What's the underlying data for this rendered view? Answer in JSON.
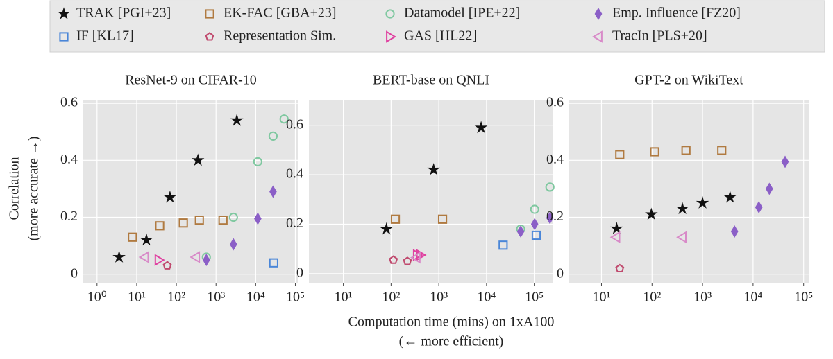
{
  "chart_data": [
    {
      "type": "scatter",
      "title": "ResNet-9 on CIFAR-10",
      "xscale": "log",
      "grid": true,
      "xlim": [
        0.45,
        120000
      ],
      "ylim": [
        -0.03,
        0.61
      ],
      "xticks": [
        {
          "value": 1,
          "label": "10⁰"
        },
        {
          "value": 10,
          "label": "10¹"
        },
        {
          "value": 100,
          "label": "10²"
        },
        {
          "value": 1000,
          "label": "10³"
        },
        {
          "value": 10000,
          "label": "10⁴"
        },
        {
          "value": 100000,
          "label": "10⁵"
        }
      ],
      "yticks": [
        0,
        0.2,
        0.4,
        0.6
      ],
      "series": [
        {
          "name": "TRAK [PGI+23]",
          "color": "#111111",
          "marker": "star",
          "x": [
            3.6,
            17.6,
            69,
            350,
            3350
          ],
          "values": [
            0.06,
            0.12,
            0.27,
            0.4,
            0.54
          ]
        },
        {
          "name": "EK-FAC [GBA+23]",
          "color": "#b07a40",
          "marker": "square",
          "x": [
            7.8,
            38,
            150,
            380,
            1500
          ],
          "values": [
            0.13,
            0.17,
            0.18,
            0.19,
            0.19
          ]
        },
        {
          "name": "Datamodel [IPE+22]",
          "color": "#7fc8a0",
          "marker": "circle",
          "x": [
            570,
            2750,
            11300,
            27500,
            52000
          ],
          "values": [
            0.06,
            0.2,
            0.395,
            0.485,
            0.545
          ]
        },
        {
          "name": "Emp. Influence [FZ20]",
          "color": "#8b5fc7",
          "marker": "diamond",
          "x": [
            570,
            2750,
            11300,
            27500
          ],
          "values": [
            0.05,
            0.105,
            0.195,
            0.29
          ]
        },
        {
          "name": "IF [KL17]",
          "color": "#4a86d8",
          "marker": "square",
          "x": [
            28500
          ],
          "values": [
            0.04
          ]
        },
        {
          "name": "Representation Sim.",
          "color": "#c04a6e",
          "marker": "pentagon",
          "x": [
            59
          ],
          "values": [
            0.03
          ]
        },
        {
          "name": "GAS [HL22]",
          "color": "#e040a0",
          "marker": "triright",
          "x": [
            36
          ],
          "values": [
            0.05
          ]
        },
        {
          "name": "TracIn [PLS+20]",
          "color": "#d88ac8",
          "marker": "trileft",
          "x": [
            16,
            310
          ],
          "values": [
            0.06,
            0.06
          ]
        }
      ]
    },
    {
      "type": "scatter",
      "title": "BERT-base on QNLI",
      "xscale": "log",
      "grid": true,
      "xlim": [
        1.9,
        250000
      ],
      "ylim": [
        -0.037,
        0.7
      ],
      "xticks": [
        {
          "value": 10,
          "label": "10¹"
        },
        {
          "value": 100,
          "label": "10²"
        },
        {
          "value": 1000,
          "label": "10³"
        },
        {
          "value": 10000,
          "label": "10⁴"
        },
        {
          "value": 100000,
          "label": "10⁵"
        }
      ],
      "yticks": [
        0,
        0.2,
        0.4,
        0.6
      ],
      "series": [
        {
          "name": "TRAK [PGI+23]",
          "color": "#111111",
          "marker": "star",
          "x": [
            80,
            780,
            7700
          ],
          "values": [
            0.18,
            0.42,
            0.59
          ]
        },
        {
          "name": "EK-FAC [GBA+23]",
          "color": "#b07a40",
          "marker": "square",
          "x": [
            123,
            1200
          ],
          "values": [
            0.22,
            0.22
          ]
        },
        {
          "name": "Datamodel [IPE+22]",
          "color": "#7fc8a0",
          "marker": "circle",
          "x": [
            52000,
            102000,
            213000
          ],
          "values": [
            0.18,
            0.26,
            0.35
          ]
        },
        {
          "name": "Emp. Influence [FZ20]",
          "color": "#8b5fc7",
          "marker": "diamond",
          "x": [
            52000,
            102000,
            213000
          ],
          "values": [
            0.17,
            0.2,
            0.225
          ]
        },
        {
          "name": "IF [KL17]",
          "color": "#4a86d8",
          "marker": "square",
          "x": [
            22300,
            110000
          ],
          "values": [
            0.115,
            0.155
          ]
        },
        {
          "name": "Representation Sim.",
          "color": "#c04a6e",
          "marker": "pentagon",
          "x": [
            112,
            220
          ],
          "values": [
            0.055,
            0.05
          ]
        },
        {
          "name": "GAS [HL22]",
          "color": "#e040a0",
          "marker": "triright",
          "x": [
            350,
            410
          ],
          "values": [
            0.075,
            0.075
          ]
        },
        {
          "name": "TracIn [PLS+20]",
          "color": "#d88ac8",
          "marker": "trileft",
          "x": [
            340
          ],
          "values": [
            0.065
          ]
        }
      ]
    },
    {
      "type": "scatter",
      "title": "GPT-2 on WikiText",
      "xscale": "log",
      "grid": true,
      "xlim": [
        2.3,
        126000
      ],
      "ylim": [
        -0.03,
        0.61
      ],
      "xticks": [
        {
          "value": 10,
          "label": "10¹"
        },
        {
          "value": 100,
          "label": "10²"
        },
        {
          "value": 1000,
          "label": "10³"
        },
        {
          "value": 10000,
          "label": "10⁴"
        },
        {
          "value": 100000,
          "label": "10⁵"
        }
      ],
      "yticks": [
        0,
        0.2,
        0.4,
        0.6
      ],
      "series": [
        {
          "name": "TRAK [PGI+23]",
          "color": "#111111",
          "marker": "star",
          "x": [
            20,
            97,
            400,
            1000,
            3500
          ],
          "values": [
            0.16,
            0.21,
            0.23,
            0.25,
            0.27
          ]
        },
        {
          "name": "EK-FAC [GBA+23]",
          "color": "#b07a40",
          "marker": "square",
          "x": [
            23,
            113,
            470,
            2400
          ],
          "values": [
            0.42,
            0.43,
            0.435,
            0.435
          ]
        },
        {
          "name": "Emp. Influence [FZ20]",
          "color": "#8b5fc7",
          "marker": "diamond",
          "x": [
            4300,
            13000,
            21000,
            43000
          ],
          "values": [
            0.15,
            0.235,
            0.3,
            0.395
          ]
        },
        {
          "name": "Representation Sim.",
          "color": "#c04a6e",
          "marker": "pentagon",
          "x": [
            23
          ],
          "values": [
            0.02
          ]
        },
        {
          "name": "TracIn [PLS+20]",
          "color": "#d88ac8",
          "marker": "trileft",
          "x": [
            19.5,
            400
          ],
          "values": [
            0.13,
            0.13
          ]
        }
      ]
    }
  ],
  "xlabel": [
    "Computation time (mins) on 1xA100",
    "(← more efficient)"
  ],
  "ylabel": [
    "Correlation",
    "(more accurate →)"
  ]
}
